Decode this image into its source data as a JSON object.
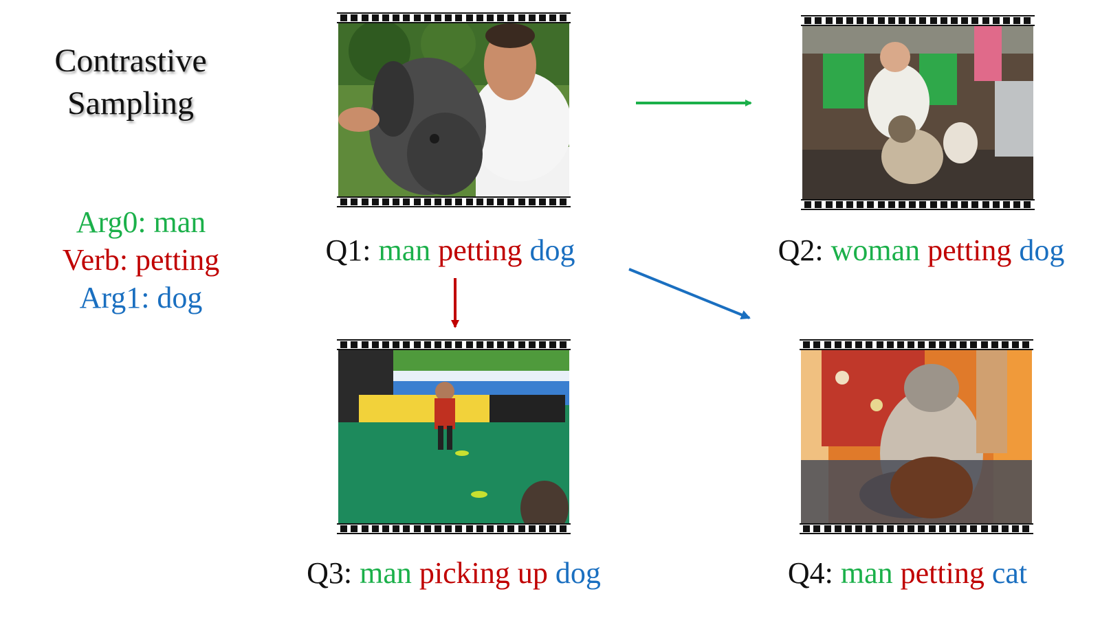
{
  "title": {
    "line1": "Contrastive",
    "line2": "Sampling"
  },
  "srl": {
    "arg0": "Arg0: man",
    "verb": "Verb: petting",
    "arg1": "Arg1: dog"
  },
  "queries": [
    {
      "id": "Q1:",
      "arg0": "man",
      "verb": "petting",
      "arg1": "dog"
    },
    {
      "id": "Q2:",
      "arg0": "woman",
      "verb": "petting",
      "arg1": "dog"
    },
    {
      "id": "Q3:",
      "arg0": "man",
      "verb": "picking up",
      "arg1": "dog"
    },
    {
      "id": "Q4:",
      "arg0": "man",
      "verb": "petting",
      "arg1": "cat"
    }
  ],
  "colors": {
    "arg0": "#1bb04a",
    "verb": "#c00000",
    "arg1": "#1a6fc0"
  }
}
